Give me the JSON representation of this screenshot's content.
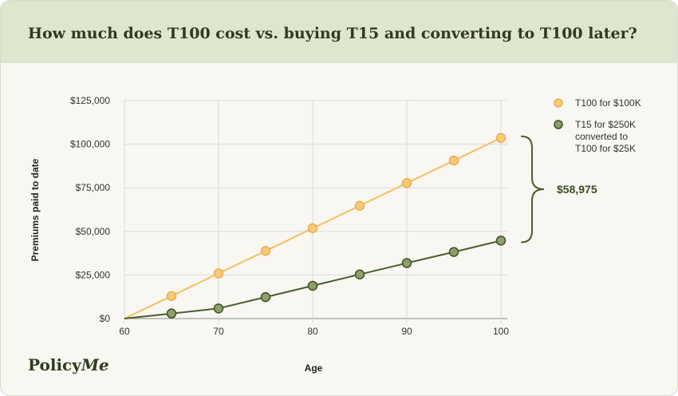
{
  "header": {
    "title": "How much does T100 cost vs. buying T15 and converting to T100 later?"
  },
  "brand": {
    "logo_text_a": "Policy",
    "logo_text_b": "Me"
  },
  "colors": {
    "t100": "#f6be62",
    "t15": "#4b5e2e",
    "grid": "#dcdcd6",
    "text": "#333333"
  },
  "chart_data": {
    "type": "line",
    "xlabel": "Age",
    "ylabel": "Premiums paid to date",
    "xlim": [
      60,
      100
    ],
    "ylim": [
      0,
      125000
    ],
    "x_ticks": [
      60,
      70,
      80,
      90,
      100
    ],
    "x_tick_labels": [
      "60",
      "70",
      "80",
      "90",
      "100"
    ],
    "y_ticks": [
      0,
      25000,
      50000,
      75000,
      100000,
      125000
    ],
    "y_tick_labels": [
      "$0",
      "$25,000",
      "$50,000",
      "$75,000",
      "$100,000",
      "$125,000"
    ],
    "grid": true,
    "legend_position": "right",
    "series": [
      {
        "name": "T100 for $100K",
        "x": [
          60,
          65,
          70,
          75,
          80,
          85,
          90,
          95,
          100
        ],
        "y": [
          0,
          12900,
          25900,
          38800,
          51800,
          64700,
          77700,
          90600,
          103600
        ],
        "markers_from_index": 1
      },
      {
        "name": "T15 for $250K converted to T100 for $25K",
        "legend_lines": [
          "T15 for $250K",
          "converted to",
          "T100 for $25K"
        ],
        "x": [
          60,
          65,
          70,
          75,
          80,
          85,
          90,
          95,
          100
        ],
        "y": [
          0,
          2900,
          5800,
          12300,
          18800,
          25300,
          31800,
          38200,
          44700
        ],
        "markers_from_index": 1
      }
    ],
    "annotation": {
      "text": "$58,975",
      "y_from": 103600,
      "y_to": 44700
    }
  }
}
